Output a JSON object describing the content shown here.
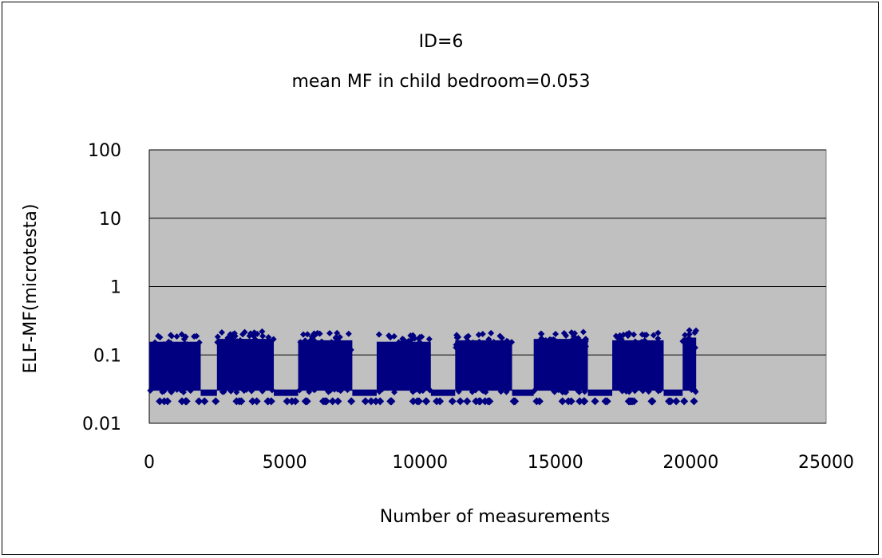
{
  "chart_data": {
    "type": "scatter",
    "title": "ID=6",
    "subtitle": "mean MF in child bedroom=0.053",
    "xlabel": "Number of measurements",
    "ylabel": "ELF-MF(microtesta)",
    "xlim": [
      0,
      25000
    ],
    "ylim": [
      0.01,
      100
    ],
    "yscale": "log",
    "xticks": [
      "0",
      "5000",
      "10000",
      "15000",
      "20000",
      "25000"
    ],
    "yticks": [
      "0.01",
      "0.1",
      "1",
      "10",
      "100"
    ],
    "ytick_values": [
      0.01,
      0.1,
      1,
      10,
      100
    ],
    "grid": true,
    "plot_background": "#c0c0c0",
    "marker_color": "#000080",
    "marker": "diamond",
    "series": [
      {
        "segments": [
          {
            "x_start": 0,
            "x_end": 1900,
            "ymin": 0.03,
            "ymax": 0.2
          },
          {
            "x_start": 2500,
            "x_end": 4600,
            "ymin": 0.03,
            "ymax": 0.22
          },
          {
            "x_start": 5500,
            "x_end": 7500,
            "ymin": 0.03,
            "ymax": 0.21
          },
          {
            "x_start": 8400,
            "x_end": 10400,
            "ymin": 0.03,
            "ymax": 0.2
          },
          {
            "x_start": 11300,
            "x_end": 13400,
            "ymin": 0.03,
            "ymax": 0.21
          },
          {
            "x_start": 14200,
            "x_end": 16200,
            "ymin": 0.03,
            "ymax": 0.22
          },
          {
            "x_start": 17100,
            "x_end": 19000,
            "ymin": 0.03,
            "ymax": 0.21
          },
          {
            "x_start": 19700,
            "x_end": 20200,
            "ymin": 0.03,
            "ymax": 0.23
          }
        ],
        "gaps": [
          {
            "x_start": 1900,
            "x_end": 2500,
            "y": 0.028
          },
          {
            "x_start": 4600,
            "x_end": 5500,
            "y": 0.028
          },
          {
            "x_start": 7500,
            "x_end": 8400,
            "y": 0.028
          },
          {
            "x_start": 10400,
            "x_end": 11300,
            "y": 0.028
          },
          {
            "x_start": 13400,
            "x_end": 14200,
            "y": 0.028
          },
          {
            "x_start": 16200,
            "x_end": 17100,
            "y": 0.028
          },
          {
            "x_start": 19000,
            "x_end": 19700,
            "y": 0.028
          }
        ],
        "low_points_y": 0.021
      }
    ]
  }
}
